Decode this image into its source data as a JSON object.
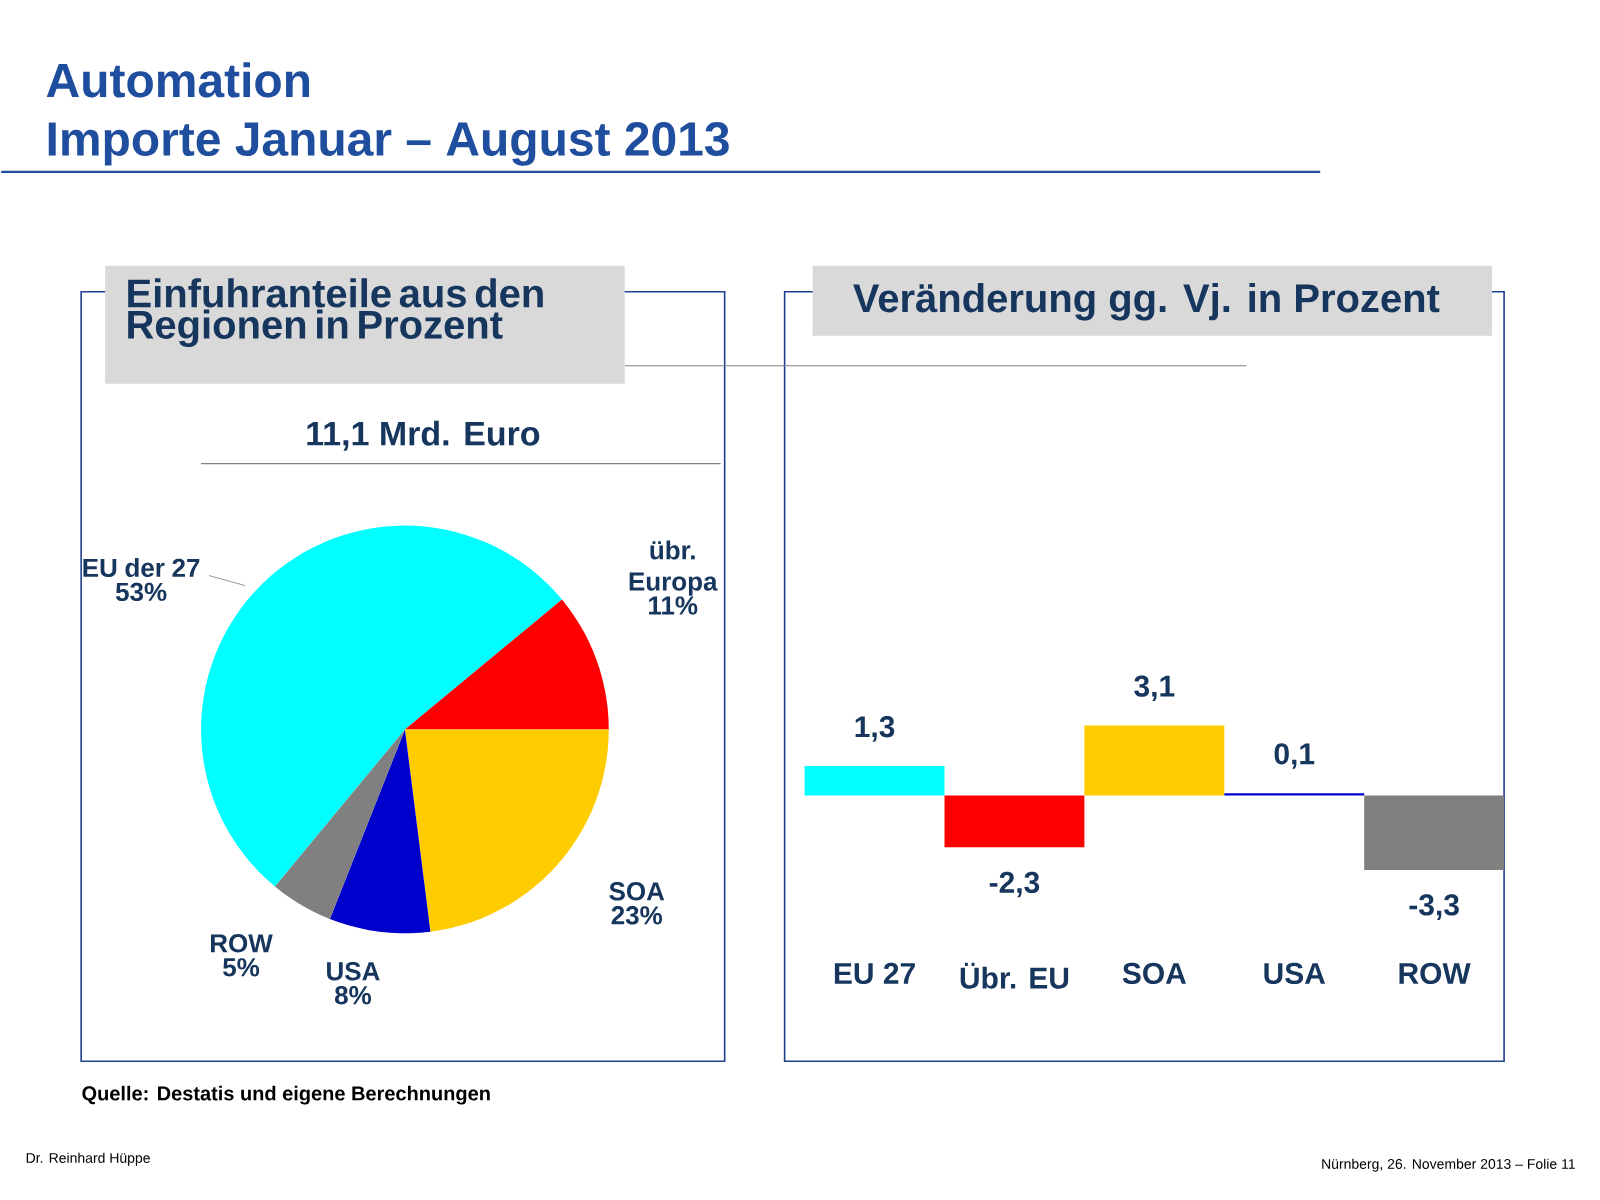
{
  "chart_data": [
    {
      "type": "pie",
      "title": "Einfuhranteile aus den Regionen in Prozent",
      "subtitle": "11,1 Mrd. Euro",
      "categories": [
        "EU der 27",
        "übr. Europa",
        "SOA",
        "USA",
        "ROW"
      ],
      "values": [
        53,
        11,
        23,
        8,
        5
      ],
      "colors": [
        "#00ffff",
        "#ff0000",
        "#ffcc00",
        "#0000cc",
        "#808080"
      ],
      "value_labels": [
        "53%",
        "11%",
        "23%",
        "8%",
        "5%"
      ],
      "annotations": [
        "Automation",
        "Importe Januar – August 2013",
        "Quelle: Destatis und eigene Berechnungen",
        "Dr. Reinhard Hüppe",
        "Nürnberg, 26. November 2013 – Folie 11"
      ]
    },
    {
      "type": "bar",
      "title": "Veränderung gg. Vj. in Prozent",
      "categories": [
        "EU 27",
        "Übr. EU",
        "SOA",
        "USA",
        "ROW"
      ],
      "values": [
        1.3,
        -2.3,
        3.1,
        0.1,
        -3.3
      ],
      "colors": [
        "#00ffff",
        "#ff0000",
        "#ffcc00",
        "#0000cc",
        "#808080"
      ],
      "value_labels": [
        "1,3",
        "-2,3",
        "3,1",
        "0,1",
        "-3,3"
      ]
    }
  ]
}
